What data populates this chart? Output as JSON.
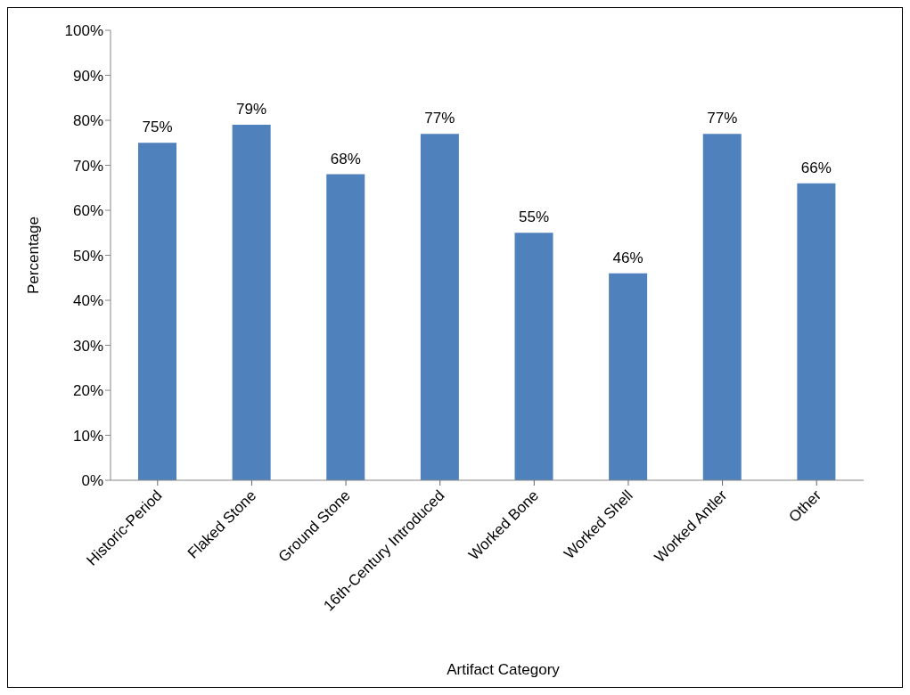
{
  "chart_data": {
    "type": "bar",
    "xlabel": "Artifact Category",
    "ylabel": "Percentage",
    "categories": [
      "Historic-Period",
      "Flaked Stone",
      "Ground Stone",
      "16th-Century Introduced",
      "Worked Bone",
      "Worked Shell",
      "Worked Antler",
      "Other"
    ],
    "values": [
      75,
      79,
      68,
      77,
      55,
      46,
      77,
      66
    ],
    "value_labels": [
      "75%",
      "79%",
      "68%",
      "77%",
      "55%",
      "46%",
      "77%",
      "66%"
    ],
    "color": "#4f81bd",
    "ylim": [
      0,
      100
    ],
    "yticks": [
      {
        "value": 0,
        "label": "0%"
      },
      {
        "value": 10,
        "label": "10%"
      },
      {
        "value": 20,
        "label": "20%"
      },
      {
        "value": 30,
        "label": "30%"
      },
      {
        "value": 40,
        "label": "40%"
      },
      {
        "value": 50,
        "label": "50%"
      },
      {
        "value": 60,
        "label": "60%"
      },
      {
        "value": 70,
        "label": "70%"
      },
      {
        "value": 80,
        "label": "80%"
      },
      {
        "value": 90,
        "label": "90%"
      },
      {
        "value": 100,
        "label": "100%"
      }
    ],
    "grid": false,
    "legend": false
  }
}
